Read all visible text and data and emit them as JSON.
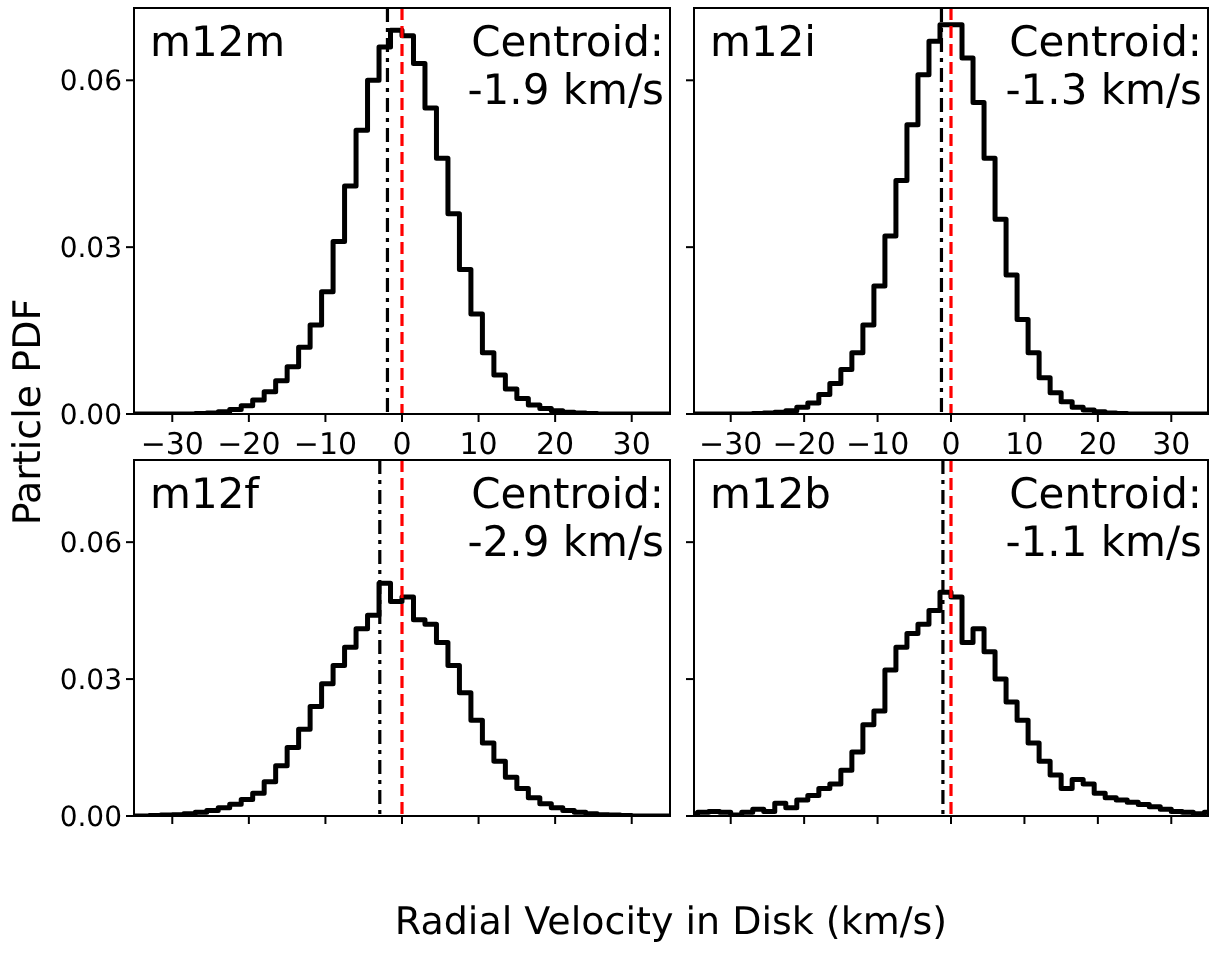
{
  "chart_data": [
    {
      "type": "histogram",
      "title": "m12m",
      "ylabel": "Particle PDF",
      "annotations": [
        "Centroid:\n-1.9 km/s"
      ],
      "color": "#000000",
      "bins": [
        -36,
        -34.5,
        -33,
        -31.5,
        -30,
        -28.5,
        -27,
        -25.5,
        -24,
        -22.5,
        -21,
        -19.5,
        -18,
        -16.5,
        -15,
        -13.5,
        -12,
        -10.5,
        -9,
        -7.5,
        -6,
        -4.5,
        -3,
        -1.5,
        0,
        1.5,
        3,
        4.5,
        6,
        7.5,
        9,
        10.5,
        12,
        13.5,
        15,
        16.5,
        18,
        19.5,
        21,
        22.5,
        24,
        25.5,
        27,
        28.5,
        30,
        31.5,
        33,
        34.5,
        36
      ],
      "values": [
        0,
        0,
        0,
        0,
        0,
        0,
        0.0001,
        0.0002,
        0.0004,
        0.0008,
        0.0015,
        0.0025,
        0.004,
        0.006,
        0.0085,
        0.012,
        0.016,
        0.022,
        0.031,
        0.041,
        0.051,
        0.06,
        0.066,
        0.069,
        0.068,
        0.063,
        0.055,
        0.046,
        0.036,
        0.026,
        0.018,
        0.011,
        0.007,
        0.0045,
        0.0028,
        0.0016,
        0.001,
        0.0006,
        0.0003,
        0.0002,
        0.0001,
        0,
        0,
        0,
        0,
        0,
        0,
        0
      ],
      "xlim": [
        -35,
        35
      ],
      "xticks": [
        {
          "value": -30,
          "label": "−30"
        },
        {
          "value": -20,
          "label": "−20"
        },
        {
          "value": -10,
          "label": "−10"
        },
        0,
        10,
        20,
        30
      ],
      "ylim": [
        0,
        0.073
      ],
      "yticks": [
        {
          "value": 0,
          "label": "0.00"
        },
        {
          "value": 0.03,
          "label": "0.03"
        },
        {
          "value": 0.06,
          "label": "0.06"
        }
      ],
      "ref_lines": [
        {
          "axis": "x",
          "value": -1.9,
          "color": "#000000",
          "line_style": "dashdot"
        },
        {
          "axis": "x",
          "value": 0,
          "color": "#ff0000",
          "line_style": "dashed"
        }
      ]
    },
    {
      "type": "histogram",
      "title": "m12i",
      "annotations": [
        "Centroid:\n-1.3 km/s"
      ],
      "color": "#000000",
      "tick_labels": "x",
      "bins": [
        -36,
        -34.5,
        -33,
        -31.5,
        -30,
        -28.5,
        -27,
        -25.5,
        -24,
        -22.5,
        -21,
        -19.5,
        -18,
        -16.5,
        -15,
        -13.5,
        -12,
        -10.5,
        -9,
        -7.5,
        -6,
        -4.5,
        -3,
        -1.5,
        0,
        1.5,
        3,
        4.5,
        6,
        7.5,
        9,
        10.5,
        12,
        13.5,
        15,
        16.5,
        18,
        19.5,
        21,
        22.5,
        24,
        25.5,
        27,
        28.5,
        30,
        31.5,
        33,
        34.5,
        36
      ],
      "values": [
        0,
        0,
        0,
        0,
        0,
        0,
        0.0001,
        0.0002,
        0.0003,
        0.0006,
        0.0012,
        0.002,
        0.0035,
        0.0055,
        0.008,
        0.011,
        0.016,
        0.023,
        0.032,
        0.042,
        0.052,
        0.061,
        0.067,
        0.07,
        0.07,
        0.064,
        0.056,
        0.046,
        0.035,
        0.025,
        0.017,
        0.011,
        0.0065,
        0.0038,
        0.0022,
        0.0012,
        0.0007,
        0.0004,
        0.0002,
        0.0001,
        0,
        0,
        0,
        0,
        0,
        0,
        0,
        0
      ],
      "xlim": [
        -35,
        35
      ],
      "xticks": [
        {
          "value": -30,
          "label": "−30"
        },
        {
          "value": -20,
          "label": "−20"
        },
        {
          "value": -10,
          "label": "−10"
        },
        0,
        10,
        20,
        30
      ],
      "ylim": [
        0,
        0.073
      ],
      "yticks": [
        {
          "value": 0,
          "label": null
        },
        {
          "value": 0.03,
          "label": null
        },
        {
          "value": 0.06,
          "label": null
        }
      ],
      "ref_lines": [
        {
          "axis": "x",
          "value": -1.3,
          "color": "#000000",
          "line_style": "dashdot"
        },
        {
          "axis": "x",
          "value": 0,
          "color": "#ff0000",
          "line_style": "dashed"
        }
      ]
    },
    {
      "type": "histogram",
      "title": "m12f",
      "xlabel": "Radial Velocity in Disk (km/s)",
      "annotations": [
        "Centroid:\n-2.9 km/s"
      ],
      "color": "#000000",
      "tick_labels": "y",
      "bins": [
        -36,
        -34.5,
        -33,
        -31.5,
        -30,
        -28.5,
        -27,
        -25.5,
        -24,
        -22.5,
        -21,
        -19.5,
        -18,
        -16.5,
        -15,
        -13.5,
        -12,
        -10.5,
        -9,
        -7.5,
        -6,
        -4.5,
        -3,
        -1.5,
        0,
        1.5,
        3,
        4.5,
        6,
        7.5,
        9,
        10.5,
        12,
        13.5,
        15,
        16.5,
        18,
        19.5,
        21,
        22.5,
        24,
        25.5,
        27,
        28.5,
        30,
        31.5,
        33,
        34.5,
        36
      ],
      "values": [
        0,
        0,
        0.0001,
        0.0002,
        0.0003,
        0.0005,
        0.0008,
        0.0012,
        0.0018,
        0.0026,
        0.0036,
        0.005,
        0.0075,
        0.011,
        0.015,
        0.019,
        0.024,
        0.029,
        0.033,
        0.037,
        0.041,
        0.044,
        0.051,
        0.047,
        0.048,
        0.043,
        0.042,
        0.038,
        0.033,
        0.027,
        0.021,
        0.016,
        0.012,
        0.0085,
        0.006,
        0.004,
        0.0027,
        0.0018,
        0.0012,
        0.0008,
        0.0005,
        0.0003,
        0.0002,
        0.0001,
        0,
        0,
        0,
        0
      ],
      "xlim": [
        -35,
        35
      ],
      "xticks": [
        {
          "value": -30,
          "label": null
        },
        {
          "value": -20,
          "label": null
        },
        {
          "value": -10,
          "label": null
        },
        {
          "value": 0,
          "label": null
        },
        {
          "value": 10,
          "label": null
        },
        {
          "value": 20,
          "label": null
        },
        {
          "value": 30,
          "label": null
        }
      ],
      "ylim": [
        0,
        0.078
      ],
      "yticks": [
        {
          "value": 0,
          "label": "0.00"
        },
        {
          "value": 0.03,
          "label": "0.03"
        },
        {
          "value": 0.06,
          "label": "0.06"
        }
      ],
      "ref_lines": [
        {
          "axis": "x",
          "value": -2.9,
          "color": "#000000",
          "line_style": "dashdot"
        },
        {
          "axis": "x",
          "value": 0,
          "color": "#ff0000",
          "line_style": "dashed"
        }
      ]
    },
    {
      "type": "histogram",
      "title": "m12b",
      "annotations": [
        "Centroid:\n-1.1 km/s"
      ],
      "color": "#000000",
      "tick_labels": false,
      "bins": [
        -36,
        -34.5,
        -33,
        -31.5,
        -30,
        -28.5,
        -27,
        -25.5,
        -24,
        -22.5,
        -21,
        -19.5,
        -18,
        -16.5,
        -15,
        -13.5,
        -12,
        -10.5,
        -9,
        -7.5,
        -6,
        -4.5,
        -3,
        -1.5,
        0,
        1.5,
        3,
        4.5,
        6,
        7.5,
        9,
        10.5,
        12,
        13.5,
        15,
        16.5,
        18,
        19.5,
        21,
        22.5,
        24,
        25.5,
        27,
        28.5,
        30,
        31.5,
        33,
        34.5,
        36
      ],
      "values": [
        0.0005,
        0.0008,
        0.001,
        0.0008,
        0.0002,
        0.0008,
        0.0015,
        0.001,
        0.0028,
        0.0018,
        0.0035,
        0.0045,
        0.006,
        0.007,
        0.01,
        0.014,
        0.02,
        0.023,
        0.032,
        0.037,
        0.04,
        0.042,
        0.045,
        0.049,
        0.048,
        0.038,
        0.041,
        0.036,
        0.03,
        0.025,
        0.021,
        0.016,
        0.012,
        0.009,
        0.006,
        0.008,
        0.007,
        0.005,
        0.004,
        0.0035,
        0.003,
        0.0025,
        0.002,
        0.0015,
        0.001,
        0.0008,
        0.0005,
        0.0008
      ],
      "xlim": [
        -35,
        35
      ],
      "xticks": [
        {
          "value": -30,
          "label": null
        },
        {
          "value": -20,
          "label": null
        },
        {
          "value": -10,
          "label": null
        },
        {
          "value": 0,
          "label": null
        },
        {
          "value": 10,
          "label": null
        },
        {
          "value": 20,
          "label": null
        },
        {
          "value": 30,
          "label": null
        }
      ],
      "ylim": [
        0,
        0.078
      ],
      "yticks": [
        {
          "value": 0,
          "label": null
        },
        {
          "value": 0.03,
          "label": null
        },
        {
          "value": 0.06,
          "label": null
        }
      ],
      "ref_lines": [
        {
          "axis": "x",
          "value": -1.1,
          "color": "#000000",
          "line_style": "dashdot"
        },
        {
          "axis": "x",
          "value": 0,
          "color": "#ff0000",
          "line_style": "dashed"
        }
      ]
    }
  ]
}
